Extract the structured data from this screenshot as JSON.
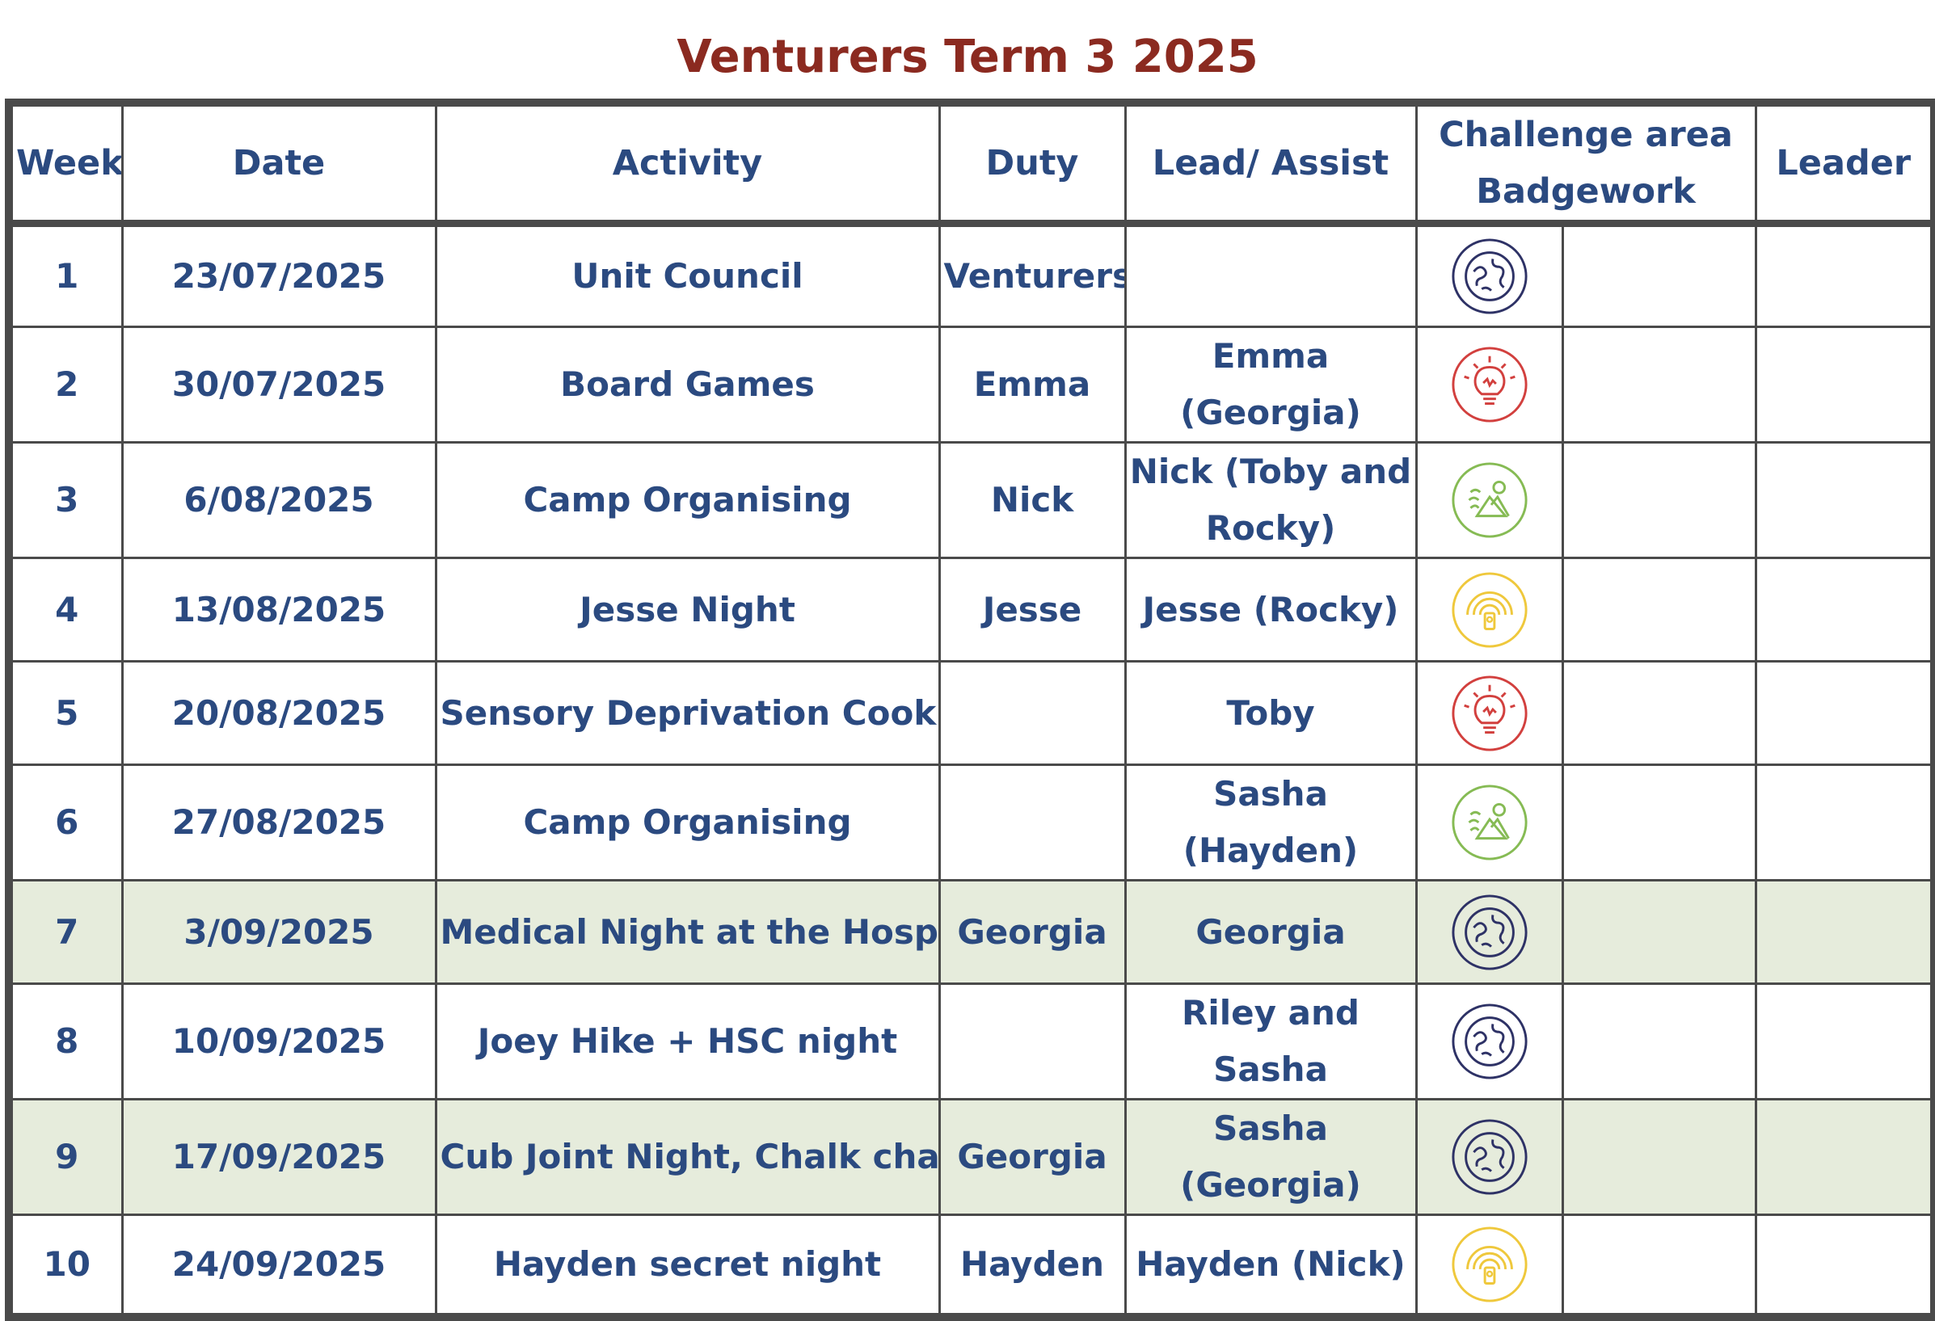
{
  "title": "Venturers Term 3 2025",
  "colors": {
    "title": "#8b2a20",
    "text": "#2b4a80",
    "border": "#4a4a4a",
    "highlight_row": "#e6ecdc",
    "icon_community": "#2e3266",
    "icon_creative": "#d2403e",
    "icon_outdoors": "#86bb54",
    "icon_personal_growth": "#efc83c"
  },
  "headers": {
    "week": "Week",
    "date": "Date",
    "activity": "Activity",
    "duty": "Duty",
    "lead": "Lead/ Assist",
    "challenge": "Challenge area Badgework",
    "leader": "Leader"
  },
  "rows": [
    {
      "week": "1",
      "date": "23/07/2025",
      "activity": "Unit Council",
      "duty": "Venturers",
      "lead": "",
      "icon": "community-globe-icon",
      "highlight": false
    },
    {
      "week": "2",
      "date": "30/07/2025",
      "activity": "Board Games",
      "duty": "Emma",
      "lead": "Emma (Georgia)",
      "icon": "creative-lightbulb-icon",
      "highlight": false
    },
    {
      "week": "3",
      "date": "6/08/2025",
      "activity": "Camp Organising",
      "duty": "Nick",
      "lead": "Nick (Toby and Rocky)",
      "icon": "outdoors-mountain-icon",
      "highlight": false
    },
    {
      "week": "4",
      "date": "13/08/2025",
      "activity": "Jesse Night",
      "duty": "Jesse",
      "lead": "Jesse (Rocky)",
      "icon": "personal-growth-signal-icon",
      "highlight": false
    },
    {
      "week": "5",
      "date": "20/08/2025",
      "activity": "Sensory Deprivation Cooking",
      "duty": "",
      "lead": "Toby",
      "icon": "creative-lightbulb-icon",
      "highlight": false
    },
    {
      "week": "6",
      "date": "27/08/2025",
      "activity": "Camp Organising",
      "duty": "",
      "lead": "Sasha (Hayden)",
      "icon": "outdoors-mountain-icon",
      "highlight": false
    },
    {
      "week": "7",
      "date": "3/09/2025",
      "activity": "Medical Night at the Hospital",
      "duty": "Georgia",
      "lead": "Georgia",
      "icon": "community-globe-icon",
      "highlight": true
    },
    {
      "week": "8",
      "date": "10/09/2025",
      "activity": "Joey Hike + HSC night",
      "duty": "",
      "lead": "Riley and Sasha",
      "icon": "community-globe-icon",
      "highlight": false
    },
    {
      "week": "9",
      "date": "17/09/2025",
      "activity": "Cub Joint Night, Chalk chase",
      "duty": "Georgia",
      "lead": "Sasha (Georgia)",
      "icon": "community-globe-icon",
      "highlight": true
    },
    {
      "week": "10",
      "date": "24/09/2025",
      "activity": "Hayden secret night",
      "duty": "Hayden",
      "lead": "Hayden (Nick)",
      "icon": "personal-growth-signal-icon",
      "highlight": false
    }
  ]
}
